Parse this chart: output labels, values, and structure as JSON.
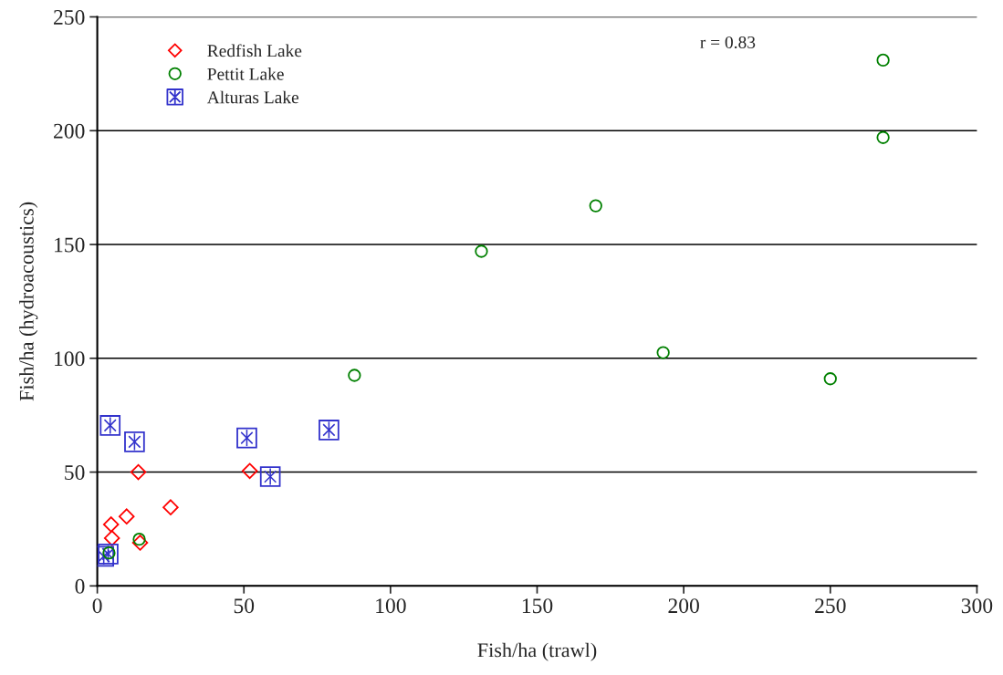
{
  "chart_data": {
    "type": "scatter",
    "xlabel": "Fish/ha (trawl)",
    "ylabel": "Fish/ha (hydroacoustics)",
    "xlim": [
      0,
      300
    ],
    "xticks": [
      0,
      50,
      100,
      150,
      200,
      250,
      300
    ],
    "ylim": [
      0,
      250
    ],
    "yticks": [
      0,
      50,
      100,
      150,
      200,
      250
    ],
    "grid": "y",
    "legend": "top left",
    "annotations": [
      "r = 0.83"
    ],
    "series": [
      {
        "name": "Redfish Lake",
        "color": "#ff0000",
        "marker": "diamond",
        "x": [
          14,
          52,
          25,
          10,
          4.7,
          5,
          14.6
        ],
        "values": [
          50,
          50.5,
          34.5,
          30.5,
          27,
          21,
          19
        ]
      },
      {
        "name": "Pettit Lake",
        "color": "#008000",
        "marker": "circle",
        "x": [
          268,
          268,
          170,
          131,
          193,
          250,
          87.7,
          14.3,
          4
        ],
        "values": [
          231,
          197,
          167,
          147,
          102.5,
          91,
          92.5,
          20.5,
          14.5
        ]
      },
      {
        "name": "Alturas Lake",
        "color": "#3333cc",
        "marker": "square",
        "x": [
          4.4,
          12.7,
          51,
          79,
          59,
          2.2,
          3.7
        ],
        "values": [
          70.5,
          63.3,
          65,
          68.5,
          48,
          13,
          14
        ]
      }
    ]
  }
}
